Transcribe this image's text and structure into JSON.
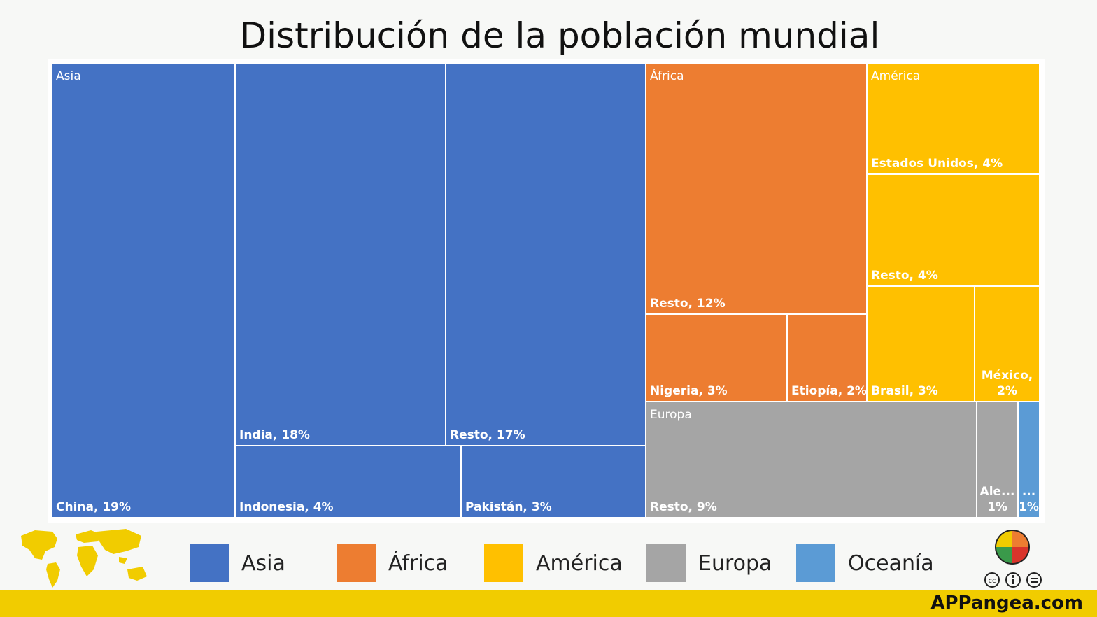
{
  "title": "Distribución de la población mundial",
  "brand": "APPangea.com",
  "legend": [
    {
      "label": "Asia",
      "color": "#4472c4"
    },
    {
      "label": "África",
      "color": "#ed7d31"
    },
    {
      "label": "América",
      "color": "#ffc000"
    },
    {
      "label": "Europa",
      "color": "#a5a5a5"
    },
    {
      "label": "Oceanía",
      "color": "#5b9bd5"
    }
  ],
  "icons": [
    "world-map-icon",
    "puzzle-logo-icon",
    "cc-license-icon",
    "cc-by-icon",
    "cc-nd-icon"
  ],
  "chart_data": {
    "type": "treemap",
    "title": "Distribución de la población mundial",
    "groups": [
      {
        "name": "Asia",
        "color": "#4472c4",
        "items": [
          {
            "label": "China, 19%",
            "value": 19
          },
          {
            "label": "India, 18%",
            "value": 18
          },
          {
            "label": "Resto, 17%",
            "value": 17
          },
          {
            "label": "Indonesia, 4%",
            "value": 4
          },
          {
            "label": "Pakistán, 3%",
            "value": 3
          }
        ]
      },
      {
        "name": "África",
        "color": "#ed7d31",
        "items": [
          {
            "label": "Resto, 12%",
            "value": 12
          },
          {
            "label": "Nigeria, 3%",
            "value": 3
          },
          {
            "label": "Etiopía, 2%",
            "value": 2
          }
        ]
      },
      {
        "name": "América",
        "color": "#ffc000",
        "items": [
          {
            "label": "Estados Unidos, 4%",
            "value": 4
          },
          {
            "label": "Resto, 4%",
            "value": 4
          },
          {
            "label": "Brasil, 3%",
            "value": 3
          },
          {
            "label": "México, 2%",
            "value": 2
          }
        ]
      },
      {
        "name": "Europa",
        "color": "#a5a5a5",
        "items": [
          {
            "label": "Resto, 9%",
            "value": 9
          },
          {
            "label": "Ale... 1%",
            "value": 1
          }
        ]
      },
      {
        "name": "",
        "color": "#5b9bd5",
        "items": [
          {
            "label": "... 1%",
            "value": 1
          }
        ]
      }
    ]
  }
}
